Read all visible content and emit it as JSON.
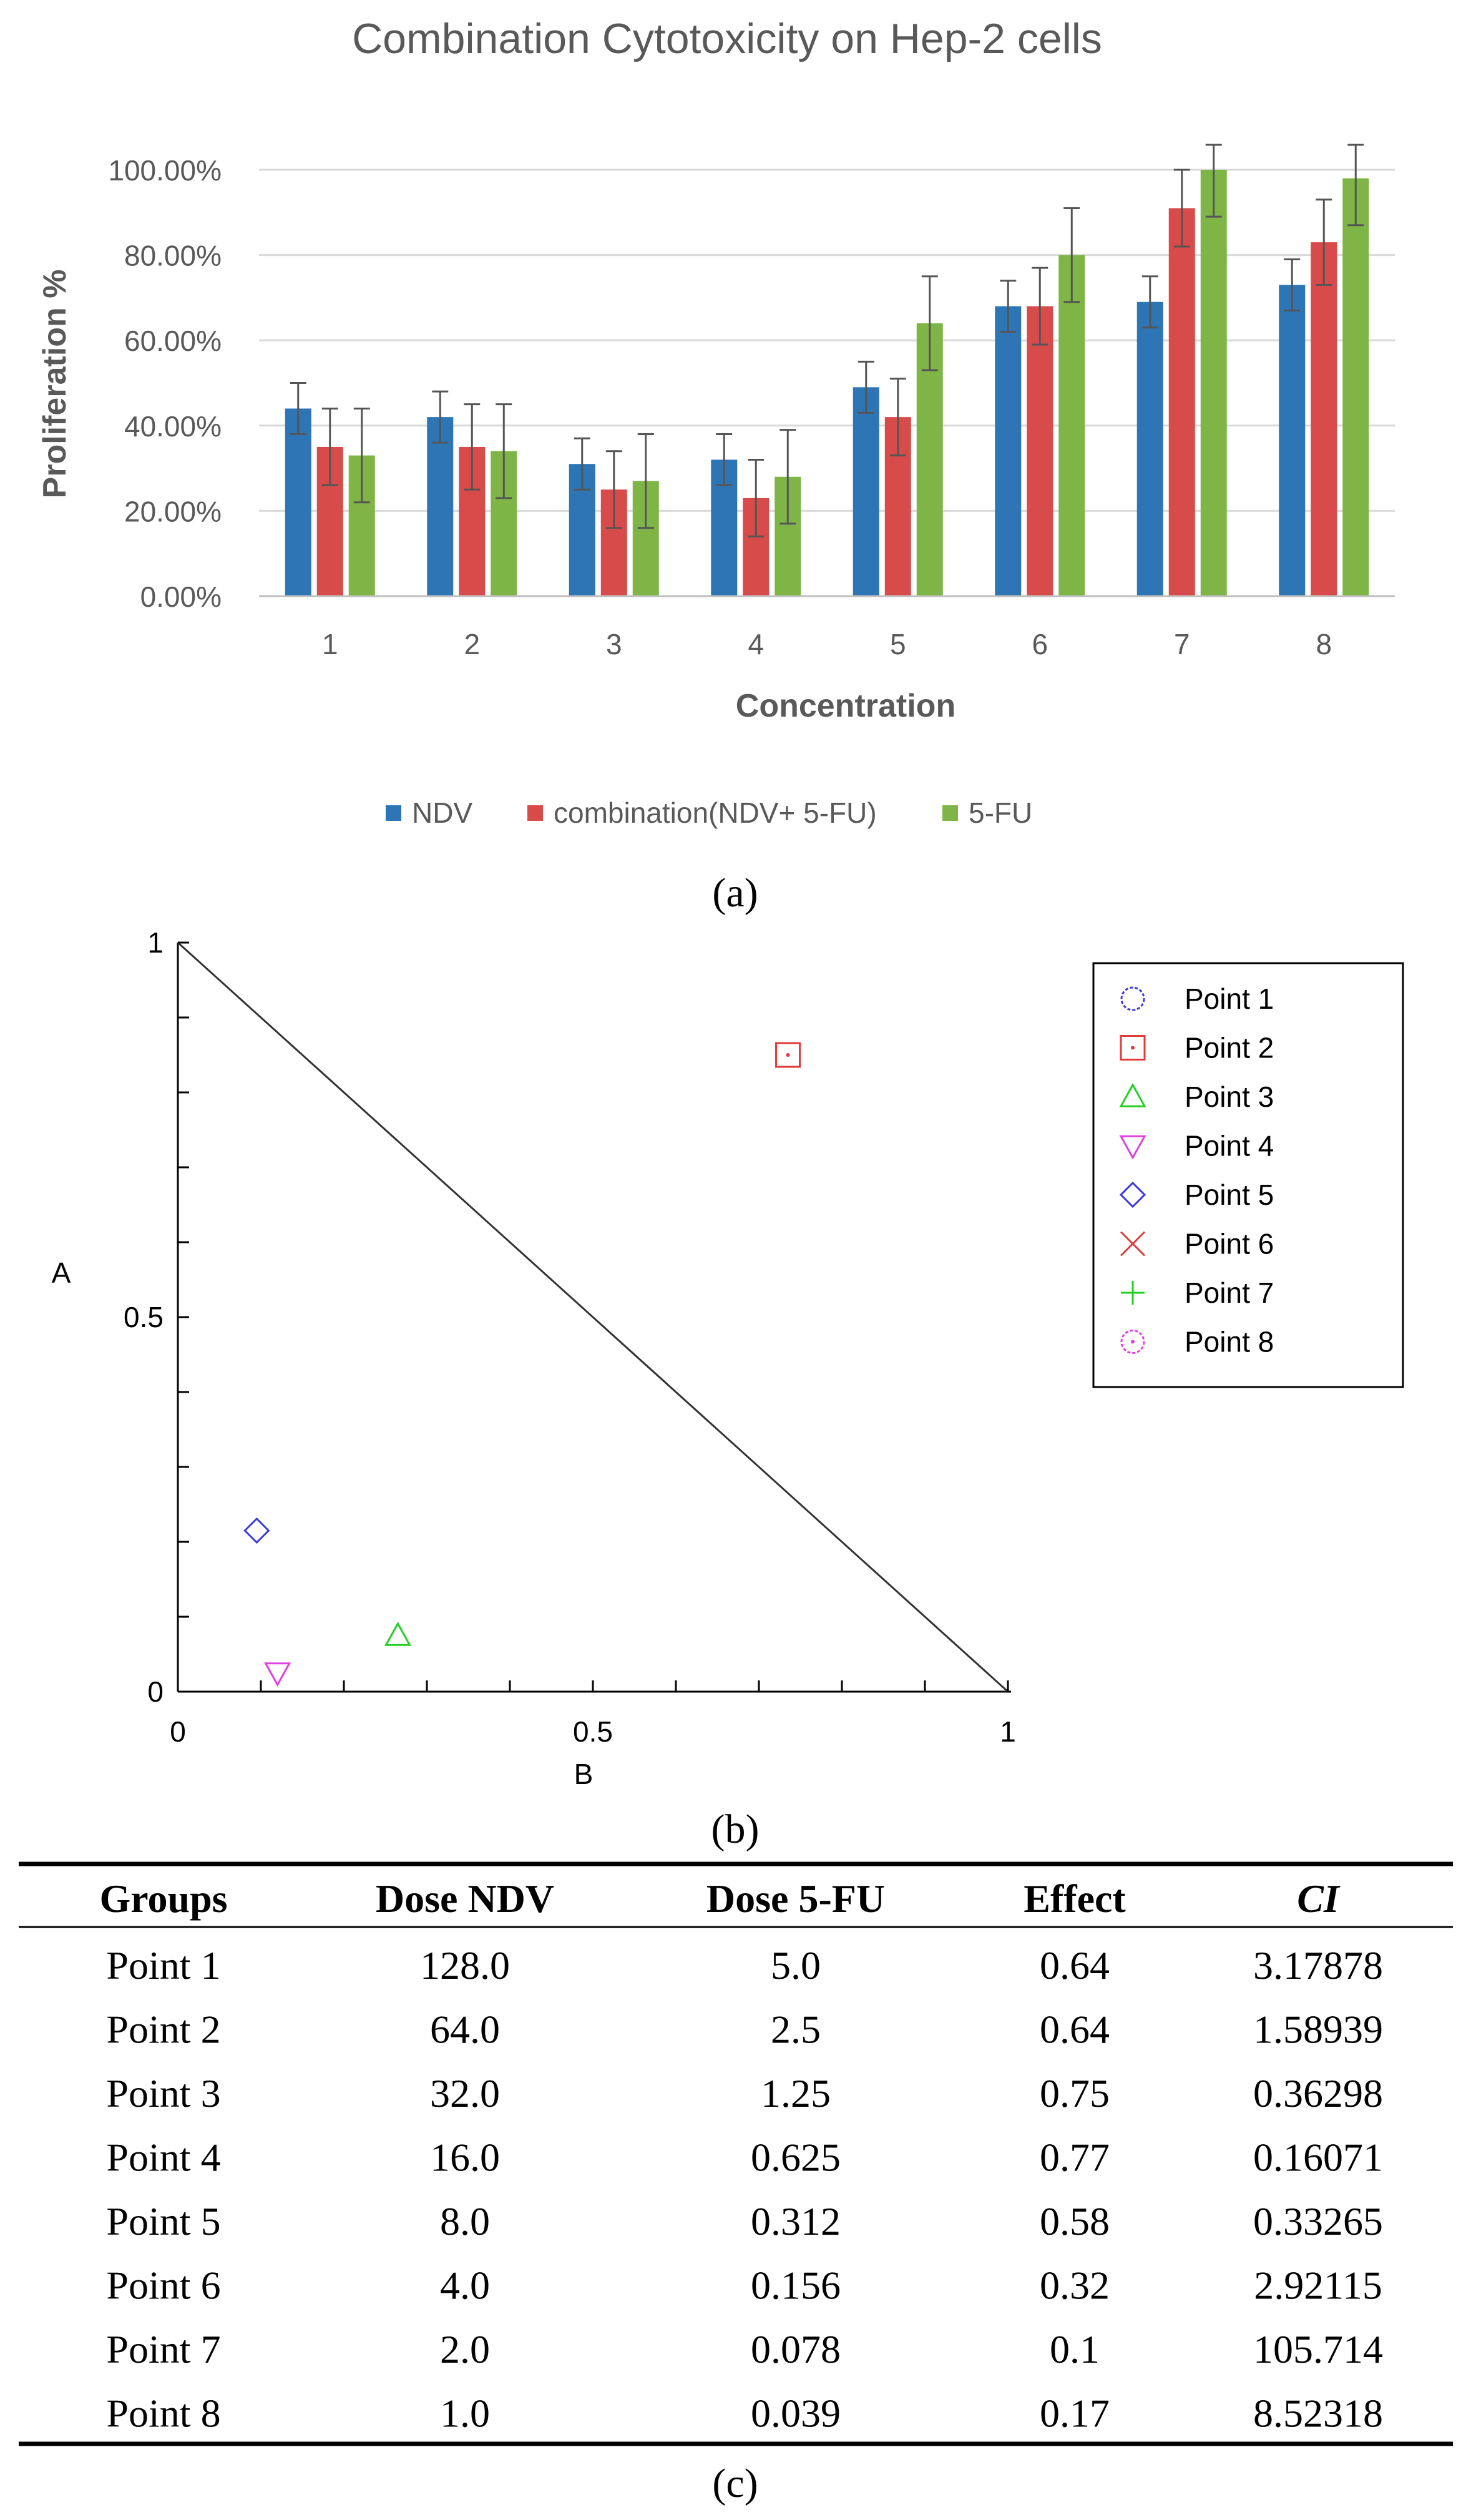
{
  "panel_labels": [
    "(a)",
    "(b)",
    "(c)"
  ],
  "colors": {
    "ndv": "#2e75b6",
    "combo": "#d84b4b",
    "fu": "#7fb547",
    "grid": "#d9d9d9",
    "axis_text": "#595959"
  },
  "chart_data": [
    {
      "type": "bar",
      "title": "Combination Cytotoxicity on Hep-2 cells",
      "xlabel": "Concentration",
      "ylabel": "Proliferation %",
      "categories": [
        "1",
        "2",
        "3",
        "4",
        "5",
        "6",
        "7",
        "8"
      ],
      "yticks": [
        "0.00%",
        "20.00%",
        "40.00%",
        "60.00%",
        "80.00%",
        "100.00%"
      ],
      "ylim": [
        0,
        100
      ],
      "series": [
        {
          "name": "NDV",
          "values": [
            44,
            42,
            31,
            32,
            49,
            68,
            69,
            73
          ],
          "errors": [
            6,
            6,
            6,
            6,
            6,
            6,
            6,
            6
          ]
        },
        {
          "name": "combination(NDV+ 5-FU)",
          "values": [
            35,
            35,
            25,
            23,
            42,
            68,
            91,
            83
          ],
          "errors": [
            9,
            10,
            9,
            9,
            9,
            9,
            9,
            10
          ]
        },
        {
          "name": "5-FU",
          "values": [
            33,
            34,
            27,
            28,
            64,
            80,
            100,
            98
          ],
          "errors": [
            11,
            11,
            11,
            11,
            11,
            11,
            11,
            11
          ]
        }
      ],
      "legend": "bottom"
    },
    {
      "type": "scatter",
      "xlabel": "B",
      "ylabel": "A",
      "xticks": [
        "0",
        "0.5",
        "1"
      ],
      "yticks": [
        "0",
        "0.5",
        "1"
      ],
      "xlim": [
        0,
        1
      ],
      "ylim": [
        0,
        1
      ],
      "line": [
        [
          0,
          1
        ],
        [
          1,
          0
        ]
      ],
      "points": [
        {
          "name": "Point 1",
          "marker": "circle",
          "color": "#3a3ae0",
          "x": null,
          "y": null
        },
        {
          "name": "Point 2",
          "marker": "square",
          "color": "#e03a3a",
          "x": 0.735,
          "y": 0.85
        },
        {
          "name": "Point 3",
          "marker": "triangle-up",
          "color": "#22d022",
          "x": 0.265,
          "y": 0.075
        },
        {
          "name": "Point 4",
          "marker": "triangle-down",
          "color": "#e040e0",
          "x": 0.12,
          "y": 0.025
        },
        {
          "name": "Point 5",
          "marker": "diamond",
          "color": "#3a3ae0",
          "x": 0.095,
          "y": 0.215
        },
        {
          "name": "Point 6",
          "marker": "x",
          "color": "#e03a3a",
          "x": null,
          "y": null
        },
        {
          "name": "Point 7",
          "marker": "plus",
          "color": "#22d022",
          "x": null,
          "y": null
        },
        {
          "name": "Point 8",
          "marker": "circle-dot",
          "color": "#e040e0",
          "x": null,
          "y": null
        }
      ],
      "legend": "top-right"
    },
    {
      "type": "table",
      "columns": [
        "Groups",
        "Dose NDV",
        "Dose 5-FU",
        "Effect",
        "CI"
      ],
      "rows": [
        [
          "Point 1",
          "128.0",
          "5.0",
          "0.64",
          "3.17878"
        ],
        [
          "Point 2",
          "64.0",
          "2.5",
          "0.64",
          "1.58939"
        ],
        [
          "Point 3",
          "32.0",
          "1.25",
          "0.75",
          "0.36298"
        ],
        [
          "Point 4",
          "16.0",
          "0.625",
          "0.77",
          "0.16071"
        ],
        [
          "Point 5",
          "8.0",
          "0.312",
          "0.58",
          "0.33265"
        ],
        [
          "Point 6",
          "4.0",
          "0.156",
          "0.32",
          "2.92115"
        ],
        [
          "Point 7",
          "2.0",
          "0.078",
          "0.1",
          "105.714"
        ],
        [
          "Point 8",
          "1.0",
          "0.039",
          "0.17",
          "8.52318"
        ]
      ]
    }
  ]
}
